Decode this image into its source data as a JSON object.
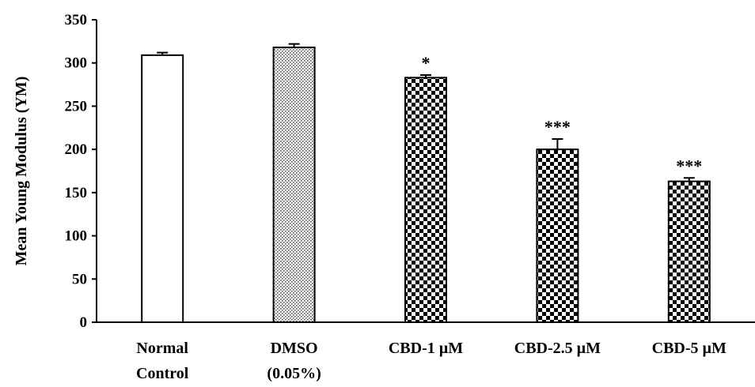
{
  "chart_data": {
    "type": "bar",
    "title": "",
    "xlabel": "",
    "ylabel": "Mean Young Modulus (YM)",
    "ylim": [
      0,
      350
    ],
    "yticks": [
      0,
      50,
      100,
      150,
      200,
      250,
      300,
      350
    ],
    "grid": false,
    "legend": "none",
    "categories": [
      [
        "Normal",
        "Control"
      ],
      [
        "DMSO",
        "(0.05%)"
      ],
      [
        "CBD-1 µM"
      ],
      [
        "CBD-2.5 µM"
      ],
      [
        "CBD-5 µM"
      ]
    ],
    "values": [
      309,
      318,
      283,
      200,
      163
    ],
    "errors": [
      3,
      4,
      3,
      12,
      4
    ],
    "significance": [
      "",
      "",
      "*",
      "***",
      "***"
    ],
    "fills": [
      "white",
      "dots",
      "checker",
      "checker",
      "checker"
    ]
  }
}
